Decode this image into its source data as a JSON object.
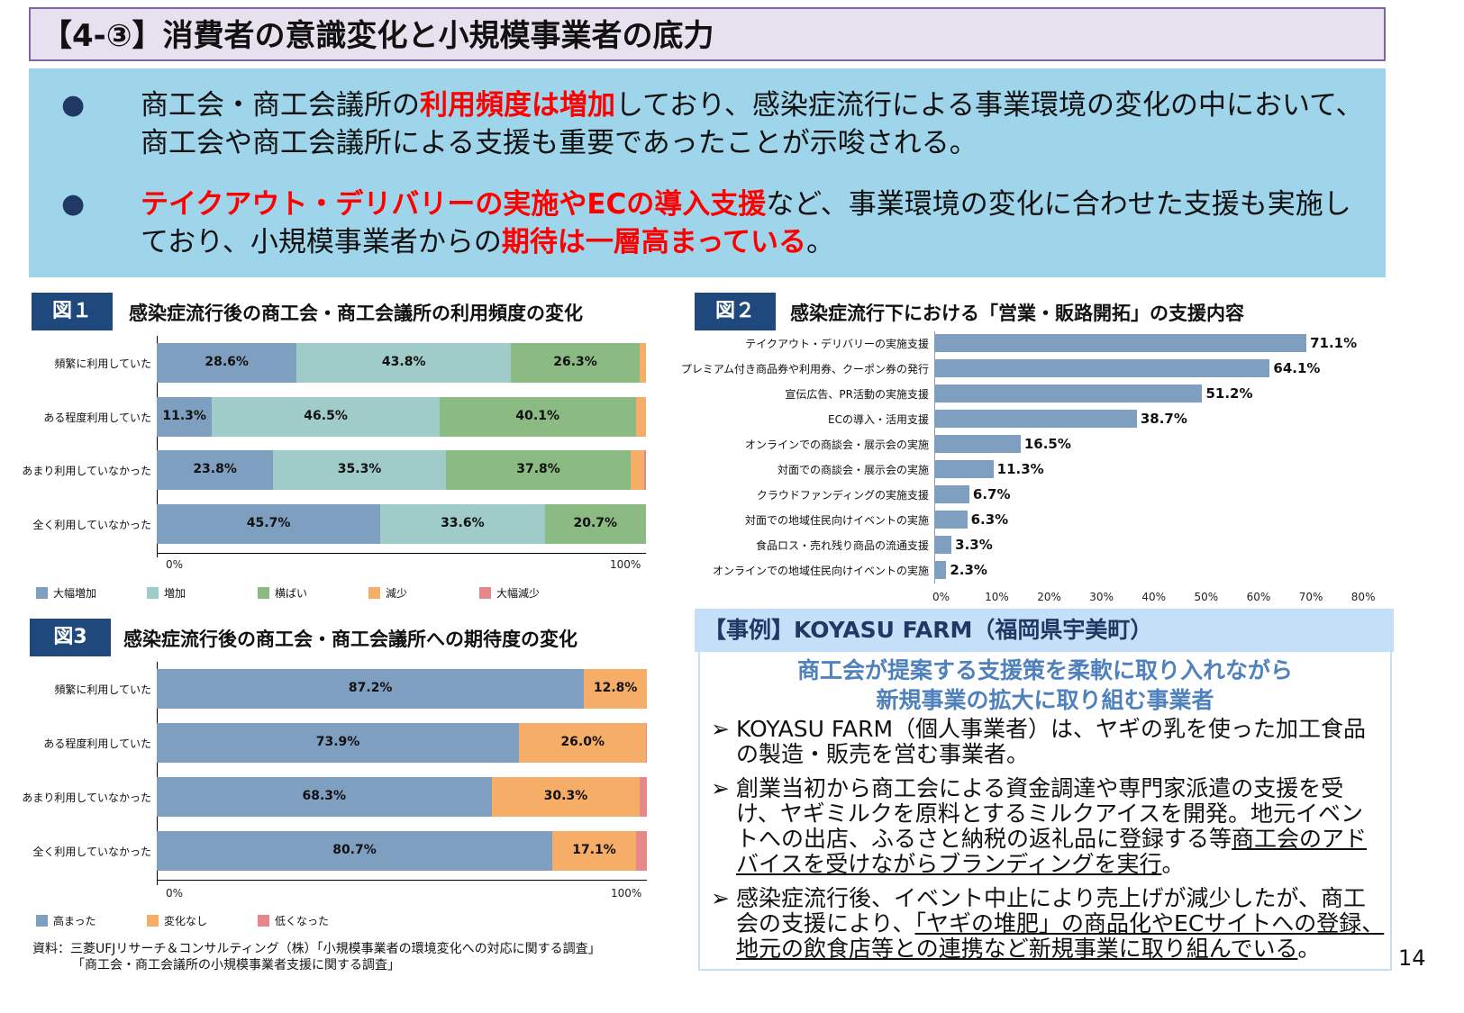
{
  "title": "【4-③】消費者の意識変化と小規模事業者の底力",
  "summary": {
    "bullet1": {
      "a": "商工会・商工会議所の",
      "b": "利用頻度は増加",
      "c": "しており、感染症流行による事業環境の変化の中において、商工会や商工会議所による支援も重要であったことが示唆される。"
    },
    "bullet2": {
      "a": "テイクアウト・デリバリーの実施やECの導入支援",
      "b": "など、事業環境の変化に合わせた支援も実施しており、小規模事業者からの",
      "c": "期待は一層高まっている",
      "d": "。"
    },
    "bullet_icon": "filled-circle"
  },
  "colors": {
    "accent_red": "#ff0000",
    "navy": "#1f497d",
    "s1": "#7f9fc0",
    "s2": "#9fcbc8",
    "s3": "#8bbb83",
    "s4": "#f5ad68",
    "s5": "#e8878a"
  },
  "chart_data": [
    {
      "type": "bar",
      "orientation": "horizontal",
      "stacked": true,
      "label": "図１",
      "title": "感染症流行後の商工会・商工会議所の利用頻度の変化",
      "categories": [
        "頻繁に利用していた",
        "ある程度利用していた",
        "あまり利用していなかった",
        "全く利用していなかった"
      ],
      "xlim": [
        0,
        100
      ],
      "xticks": [
        "0%",
        "100%"
      ],
      "legend": "bottom",
      "series": [
        {
          "name": "大幅増加",
          "color": "#7f9fc0",
          "values": [
            28.6,
            11.3,
            23.8,
            45.7
          ]
        },
        {
          "name": "増加",
          "color": "#9fcbc8",
          "values": [
            43.8,
            46.5,
            35.3,
            33.6
          ]
        },
        {
          "name": "横ばい",
          "color": "#8bbb83",
          "values": [
            26.3,
            40.1,
            37.8,
            20.7
          ]
        },
        {
          "name": "減少",
          "color": "#f5ad68",
          "values": [
            1.3,
            2.1,
            2.8,
            0
          ]
        },
        {
          "name": "大幅減少",
          "color": "#e8878a",
          "values": [
            0,
            0,
            0.3,
            0
          ]
        }
      ],
      "labels": [
        [
          "28.6%",
          "43.8%",
          "26.3%"
        ],
        [
          "11.3%",
          "46.5%",
          "40.1%"
        ],
        [
          "23.8%",
          "35.3%",
          "37.8%"
        ],
        [
          "45.7%",
          "33.6%",
          "20.7%"
        ]
      ]
    },
    {
      "type": "bar",
      "orientation": "horizontal",
      "label": "図２",
      "title": "感染症流行下における「営業・販路開拓」の支援内容",
      "categories": [
        "テイクアウト・デリバリーの実施支援",
        "プレミアム付き商品券や利用券、クーポン券の発行",
        "宣伝広告、PR活動の実施支援",
        "ECの導入・活用支援",
        "オンラインでの商談会・展示会の実施",
        "対面での商談会・展示会の実施",
        "クラウドファンディングの実施支援",
        "対面での地域住民向けイベントの実施",
        "食品ロス・売れ残り商品の流通支援",
        "オンラインでの地域住民向けイベントの実施"
      ],
      "values": [
        71.1,
        64.1,
        51.2,
        38.7,
        16.5,
        11.3,
        6.7,
        6.3,
        3.3,
        2.3
      ],
      "value_labels": [
        "71.1%",
        "64.1%",
        "51.2%",
        "38.7%",
        "16.5%",
        "11.3%",
        "6.7%",
        "6.3%",
        "3.3%",
        "2.3%"
      ],
      "xlim": [
        0,
        80
      ],
      "xticks": [
        "0%",
        "10%",
        "20%",
        "30%",
        "40%",
        "50%",
        "60%",
        "70%",
        "80%"
      ],
      "color": "#7f9fc0"
    },
    {
      "type": "bar",
      "orientation": "horizontal",
      "stacked": true,
      "label": "図3",
      "title": "感染症流行後の商工会・商工会議所への期待度の変化",
      "categories": [
        "頻繁に利用していた",
        "ある程度利用していた",
        "あまり利用していなかった",
        "全く利用していなかった"
      ],
      "xlim": [
        0,
        100
      ],
      "xticks": [
        "0%",
        "100%"
      ],
      "legend": "bottom",
      "series": [
        {
          "name": "高まった",
          "color": "#7f9fc0",
          "values": [
            87.2,
            73.9,
            68.3,
            80.7
          ]
        },
        {
          "name": "変化なし",
          "color": "#f5ad68",
          "values": [
            12.8,
            26.0,
            30.3,
            17.1
          ]
        },
        {
          "name": "低くなった",
          "color": "#e8878a",
          "values": [
            0,
            0.1,
            1.4,
            2.2
          ]
        }
      ],
      "labels": [
        [
          "87.2%",
          "12.8%"
        ],
        [
          "73.9%",
          "26.0%"
        ],
        [
          "68.3%",
          "30.3%"
        ],
        [
          "80.7%",
          "17.1%"
        ]
      ]
    }
  ],
  "source": {
    "line1": "資料：三菱UFJリサーチ＆コンサルティング（株）「小規模事業者の環境変化への対応に関する調査」",
    "line2": "「商工会・商工会議所の小規模事業者支援に関する調査」"
  },
  "case": {
    "header": "【事例】KOYASU FARM（福岡県宇美町）",
    "subtitle1": "商工会が提案する支援策を柔軟に取り入れながら",
    "subtitle2": "新規事業の拡大に取り組む事業者",
    "arrow_icon": "arrow-right-triangle",
    "p1": "KOYASU FARM（個人事業者）は、ヤギの乳を使った加工食品の製造・販売を営む事業者。",
    "p2a": "創業当初から商工会による資金調達や専門家派遣の支援を受け、ヤギミルクを原料とするミルクアイスを開発。地元イベントへの出店、ふるさと納税の返礼品に登録する等",
    "p2b": "商工会のアドバイスを受けながらブランディングを実行",
    "p2c": "。",
    "p3a": "感染症流行後、イベント中止により売上げが減少したが、商工会の支援により、",
    "p3b": "「ヤギの堆肥」の商品化やECサイトへの登録、地元の飲食店等との連携など新規事業に取り組んでいる",
    "p3c": "。"
  },
  "page_number": "14"
}
